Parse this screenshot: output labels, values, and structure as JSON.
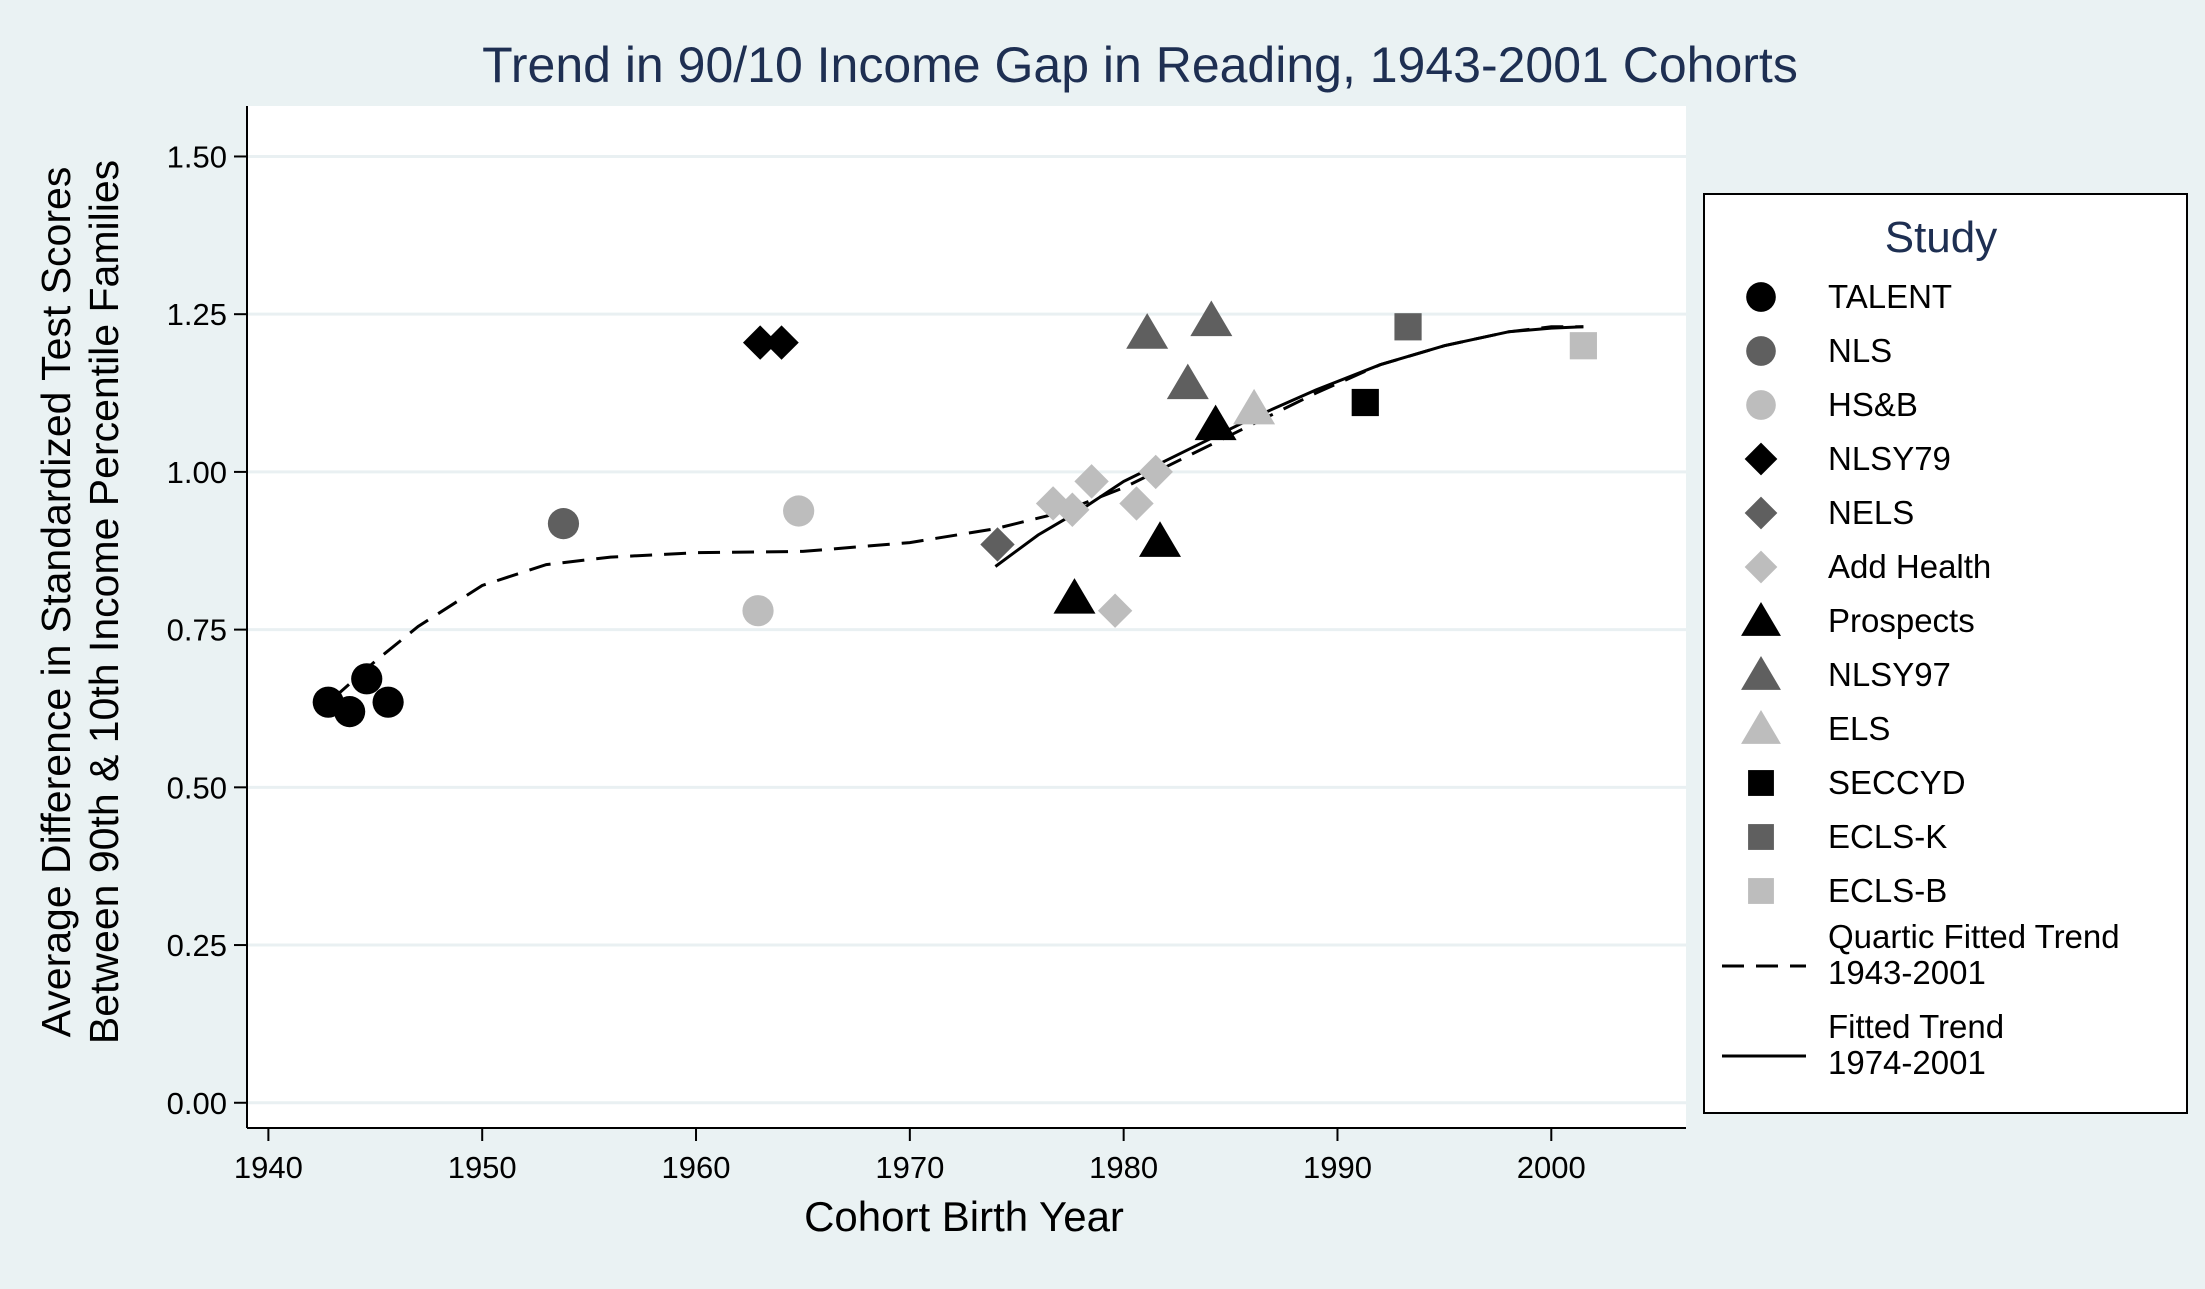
{
  "chart_data": {
    "type": "scatter",
    "title": "Trend in 90/10 Income Gap in Reading, 1943-2001 Cohorts",
    "xlabel": "Cohort Birth Year",
    "ylabel_lines": [
      "Average Difference in Standardized Test Scores",
      "Between 90th & 10th Income Percentile Families"
    ],
    "xlim": [
      1939,
      2006.3
    ],
    "ylim": [
      -0.04,
      1.58
    ],
    "x_ticks": [
      1940,
      1950,
      1960,
      1970,
      1980,
      1990,
      2000
    ],
    "y_ticks": [
      0,
      0.25,
      0.5,
      0.75,
      1.0,
      1.25,
      1.5
    ],
    "y_tick_labels": [
      "0.00",
      "0.25",
      "0.50",
      "0.75",
      "1.00",
      "1.25",
      "1.50"
    ],
    "grid": "horizontal",
    "legend": {
      "title": "Study",
      "position": "right"
    },
    "series": [
      {
        "name": "TALENT",
        "marker": "circle",
        "color": "#000000",
        "points": [
          [
            1942.8,
            0.635
          ],
          [
            1943.8,
            0.62
          ],
          [
            1944.6,
            0.672
          ],
          [
            1945.6,
            0.635
          ]
        ]
      },
      {
        "name": "NLS",
        "marker": "circle",
        "color": "#5f5f5f",
        "points": [
          [
            1953.8,
            0.918
          ]
        ]
      },
      {
        "name": "HS&B",
        "marker": "circle",
        "color": "#bdbdbd",
        "points": [
          [
            1962.9,
            0.78
          ],
          [
            1964.8,
            0.938
          ]
        ]
      },
      {
        "name": "NLSY79",
        "marker": "diamond",
        "color": "#000000",
        "points": [
          [
            1963.0,
            1.205
          ],
          [
            1964.0,
            1.205
          ]
        ]
      },
      {
        "name": "NELS",
        "marker": "diamond",
        "color": "#5f5f5f",
        "points": [
          [
            1974.1,
            0.885
          ]
        ]
      },
      {
        "name": "Add Health",
        "marker": "diamond",
        "color": "#bdbdbd",
        "points": [
          [
            1976.7,
            0.95
          ],
          [
            1977.6,
            0.94
          ],
          [
            1978.5,
            0.985
          ],
          [
            1979.6,
            0.78
          ],
          [
            1980.6,
            0.95
          ],
          [
            1981.5,
            1.0
          ]
        ]
      },
      {
        "name": "Prospects",
        "marker": "triangle",
        "color": "#000000",
        "points": [
          [
            1977.7,
            0.8
          ],
          [
            1981.7,
            0.89
          ],
          [
            1984.3,
            1.075
          ]
        ]
      },
      {
        "name": "NLSY97",
        "marker": "triangle",
        "color": "#5f5f5f",
        "points": [
          [
            1981.1,
            1.22
          ],
          [
            1983.0,
            1.14
          ],
          [
            1984.1,
            1.24
          ]
        ]
      },
      {
        "name": "ELS",
        "marker": "triangle",
        "color": "#bdbdbd",
        "points": [
          [
            1986.1,
            1.1
          ]
        ]
      },
      {
        "name": "SECCYD",
        "marker": "square",
        "color": "#000000",
        "points": [
          [
            1991.3,
            1.11
          ]
        ]
      },
      {
        "name": "ECLS-K",
        "marker": "square",
        "color": "#5f5f5f",
        "points": [
          [
            1993.3,
            1.23
          ]
        ]
      },
      {
        "name": "ECLS-B",
        "marker": "square",
        "color": "#bdbdbd",
        "points": [
          [
            2001.5,
            1.2
          ]
        ]
      }
    ],
    "lines": [
      {
        "name": "Quartic Fitted Trend",
        "name2": "1943-2001",
        "style": "dashed",
        "points": [
          [
            1943,
            0.64
          ],
          [
            1945,
            0.7
          ],
          [
            1947,
            0.755
          ],
          [
            1950,
            0.82
          ],
          [
            1953,
            0.853
          ],
          [
            1956,
            0.865
          ],
          [
            1960,
            0.872
          ],
          [
            1965,
            0.874
          ],
          [
            1970,
            0.888
          ],
          [
            1974,
            0.91
          ],
          [
            1977,
            0.935
          ],
          [
            1980,
            0.975
          ],
          [
            1983,
            1.025
          ],
          [
            1986,
            1.075
          ],
          [
            1989,
            1.125
          ],
          [
            1992,
            1.17
          ],
          [
            1995,
            1.2
          ],
          [
            1998,
            1.222
          ],
          [
            2000,
            1.23
          ],
          [
            2001.5,
            1.23
          ]
        ]
      },
      {
        "name": "Fitted Trend",
        "name2": "1974-2001",
        "style": "solid",
        "points": [
          [
            1974,
            0.85
          ],
          [
            1976,
            0.9
          ],
          [
            1978,
            0.94
          ],
          [
            1980,
            0.985
          ],
          [
            1983,
            1.035
          ],
          [
            1986,
            1.085
          ],
          [
            1989,
            1.13
          ],
          [
            1992,
            1.17
          ],
          [
            1995,
            1.2
          ],
          [
            1998,
            1.222
          ],
          [
            2000,
            1.228
          ],
          [
            2001.5,
            1.23
          ]
        ]
      }
    ]
  }
}
